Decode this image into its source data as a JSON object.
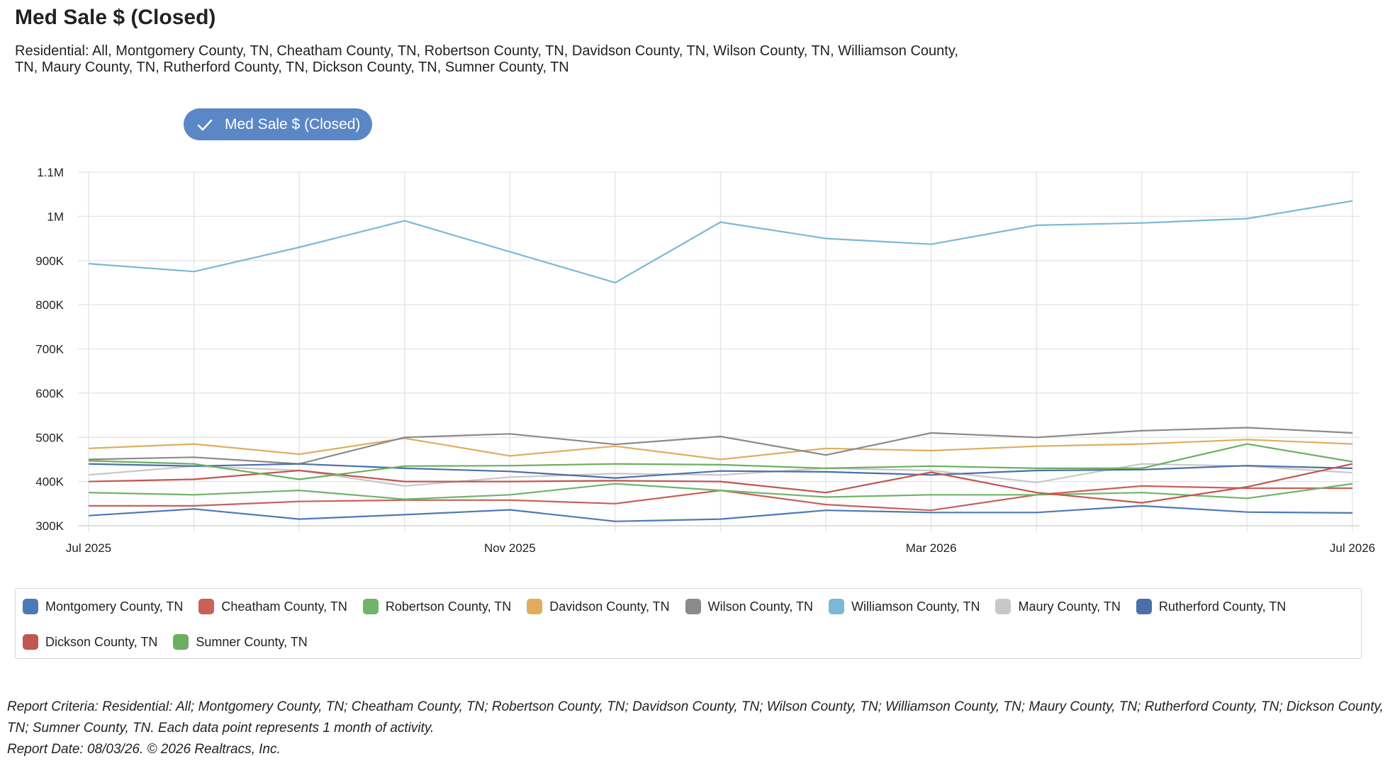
{
  "header": {
    "title": "Med Sale $ (Closed)",
    "subtitle": "Residential: All, Montgomery County, TN, Cheatham County, TN, Robertson County, TN, Davidson County, TN, Wilson County, TN, Williamson County, TN, Maury County, TN, Rutherford County, TN, Dickson County, TN, Sumner County, TN"
  },
  "toggle": {
    "label": "Med Sale $ (Closed)",
    "icon": "check-icon",
    "color": "#5b87c7"
  },
  "chart_data": {
    "type": "line",
    "title": "Med Sale $ (Closed)",
    "x": [
      "2025-07",
      "2025-08",
      "2025-09",
      "2025-10",
      "2025-11",
      "2025-12",
      "2026-01",
      "2026-02",
      "2026-03",
      "2026-04",
      "2026-05",
      "2026-06",
      "2026-07"
    ],
    "x_tick_labels": [
      {
        "index": 0,
        "label": "Jul 2025"
      },
      {
        "index": 4,
        "label": "Nov 2025"
      },
      {
        "index": 8,
        "label": "Mar 2026"
      },
      {
        "index": 12,
        "label": "Jul 2026"
      }
    ],
    "y_ticks": [
      {
        "value": 300000,
        "label": "300K"
      },
      {
        "value": 400000,
        "label": "400K"
      },
      {
        "value": 500000,
        "label": "500K"
      },
      {
        "value": 600000,
        "label": "600K"
      },
      {
        "value": 700000,
        "label": "700K"
      },
      {
        "value": 800000,
        "label": "800K"
      },
      {
        "value": 900000,
        "label": "900K"
      },
      {
        "value": 1000000,
        "label": "1M"
      },
      {
        "value": 1100000,
        "label": "1.1M"
      }
    ],
    "ylim": [
      300000,
      1100000
    ],
    "grid": true,
    "legend_position": "bottom",
    "series": [
      {
        "name": "Montgomery County, TN",
        "color": "#4e79b7",
        "values": [
          323000,
          338000,
          315000,
          325000,
          336000,
          310000,
          315000,
          335000,
          330000,
          330000,
          345000,
          331000,
          329000
        ]
      },
      {
        "name": "Cheatham County, TN",
        "color": "#c9605a",
        "values": [
          345000,
          345000,
          355000,
          358000,
          358000,
          350000,
          380000,
          348000,
          335000,
          370000,
          390000,
          385000,
          385000
        ]
      },
      {
        "name": "Robertson County, TN",
        "color": "#70b46a",
        "values": [
          375000,
          370000,
          380000,
          360000,
          370000,
          395000,
          380000,
          365000,
          370000,
          370000,
          375000,
          362000,
          395000
        ]
      },
      {
        "name": "Davidson County, TN",
        "color": "#e1ad5d",
        "values": [
          475000,
          485000,
          462000,
          498000,
          458000,
          480000,
          450000,
          475000,
          470000,
          480000,
          485000,
          495000,
          485000
        ]
      },
      {
        "name": "Wilson County, TN",
        "color": "#8a8a8a",
        "values": [
          450000,
          455000,
          440000,
          500000,
          508000,
          484000,
          502000,
          460000,
          510000,
          500000,
          515000,
          522000,
          510000
        ]
      },
      {
        "name": "Williamson County, TN",
        "color": "#7bb9d4",
        "values": [
          893000,
          875000,
          930000,
          990000,
          920000,
          850000,
          987000,
          950000,
          937000,
          980000,
          985000,
          995000,
          1035000
        ]
      },
      {
        "name": "Maury County, TN",
        "color": "#c8c8c8",
        "values": [
          415000,
          435000,
          425000,
          390000,
          410000,
          418000,
          415000,
          430000,
          425000,
          398000,
          440000,
          435000,
          420000
        ]
      },
      {
        "name": "Rutherford County, TN",
        "color": "#4a6faa",
        "values": [
          440000,
          435000,
          440000,
          430000,
          423000,
          408000,
          424000,
          422000,
          415000,
          425000,
          427000,
          436000,
          430000
        ]
      },
      {
        "name": "Dickson County, TN",
        "color": "#c25650",
        "values": [
          400000,
          405000,
          425000,
          400000,
          400000,
          402000,
          400000,
          375000,
          421000,
          375000,
          352000,
          388000,
          440000
        ]
      },
      {
        "name": "Sumner County, TN",
        "color": "#6cae62",
        "values": [
          447000,
          440000,
          405000,
          435000,
          436000,
          440000,
          438000,
          430000,
          435000,
          430000,
          430000,
          485000,
          445000
        ]
      }
    ]
  },
  "footer": {
    "criteria": "Report Criteria: Residential: All; Montgomery County, TN; Cheatham County, TN; Robertson County, TN; Davidson County, TN; Wilson County, TN; Williamson County, TN; Maury County, TN; Rutherford County, TN; Dickson County, TN; Sumner County, TN. Each data point represents 1 month of activity.",
    "date": "Report Date: 08/03/26. © 2026 Realtracs, Inc."
  }
}
